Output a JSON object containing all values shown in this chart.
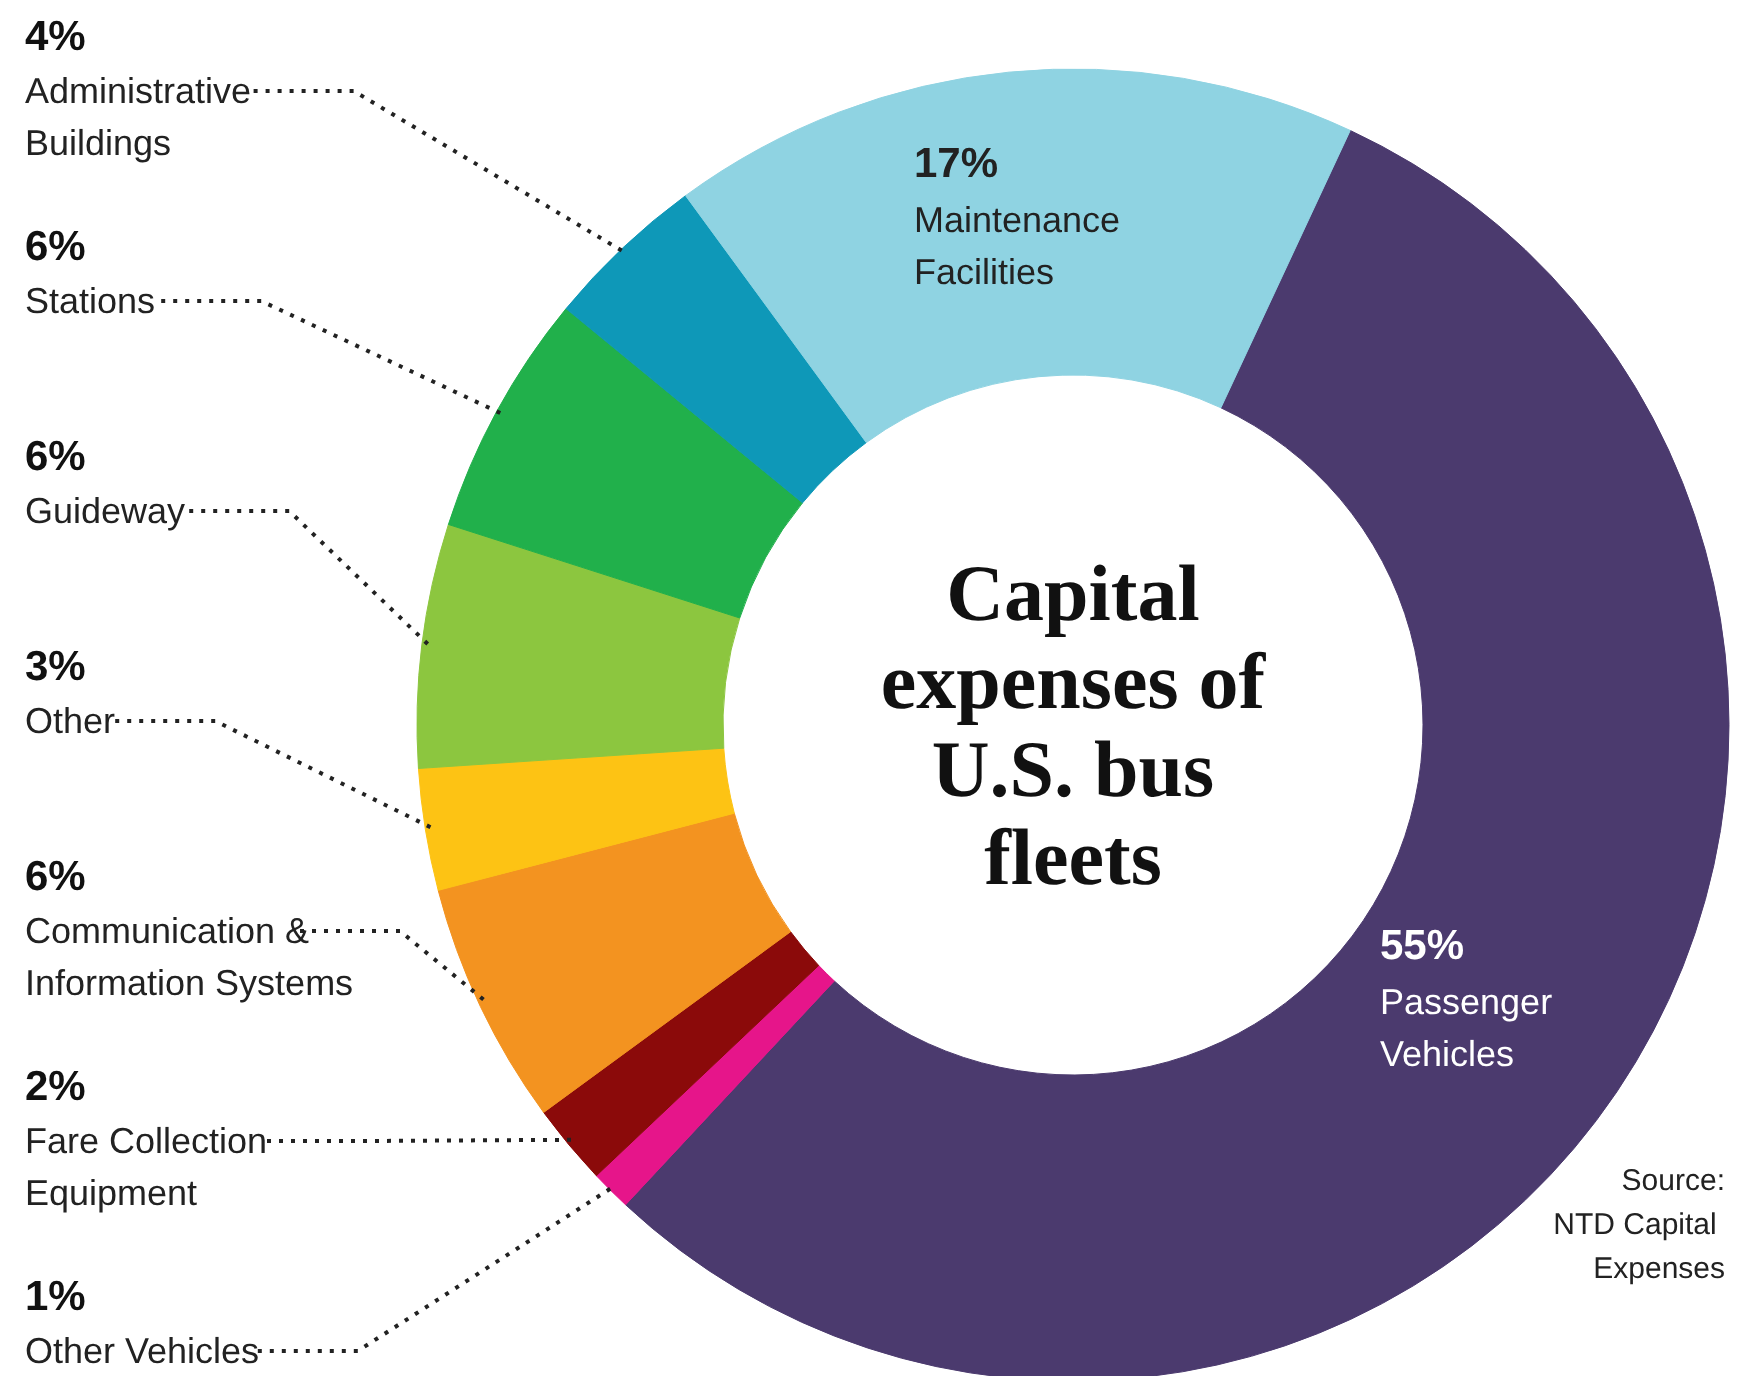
{
  "chart_data": {
    "type": "donut",
    "title": "Capital expenses of U.S. bus fleets",
    "categories": [
      "Passenger Vehicles",
      "Other Vehicles",
      "Fare Collection Equipment",
      "Communication & Information Systems",
      "Other",
      "Guideway",
      "Stations",
      "Administrative Buildings",
      "Maintenance Facilities"
    ],
    "values": [
      55,
      1,
      2,
      6,
      3,
      6,
      6,
      4,
      17
    ],
    "value_labels": [
      "55%",
      "1%",
      "2%",
      "6%",
      "3%",
      "6%",
      "6%",
      "4%",
      "17%"
    ],
    "colors": [
      "#4b3a6e",
      "#e6158a",
      "#8b0a0a",
      "#f39320",
      "#fdc314",
      "#8cc63f",
      "#21b04b",
      "#0e98b8",
      "#8fd3e2"
    ],
    "annotations": [
      "Source: NTD Capital Expenses"
    ]
  }
}
